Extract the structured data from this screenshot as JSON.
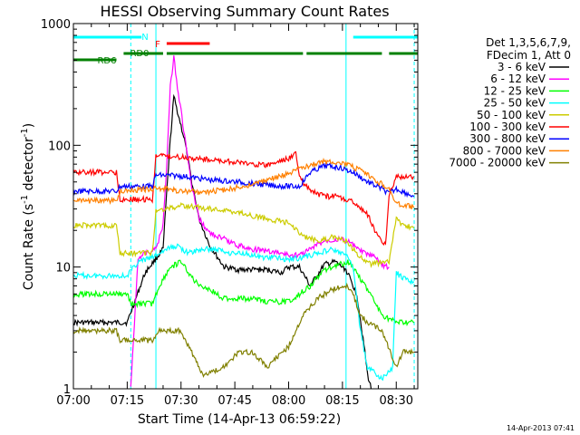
{
  "chart_data": {
    "type": "line",
    "title": "HESSI Observing Summary Count Rates",
    "xlabel": "Start Time (14-Apr-13 06:59:22)",
    "ylabel_parts": [
      "Count Rate (s",
      "-1",
      " detector",
      "-1",
      ")"
    ],
    "ylabel": "Count Rate (s-1 detector-1)",
    "xlim": [
      "07:00",
      "08:36"
    ],
    "ylim": [
      1,
      1000
    ],
    "yscale": "log",
    "x_ticks": [
      "07:00",
      "07:15",
      "07:30",
      "07:45",
      "08:00",
      "08:15",
      "08:30"
    ],
    "y_ticks": [
      "1",
      "10",
      "100",
      "1000"
    ],
    "legend_header": [
      "Det 1,3,5,6,7,9,",
      "FDecim 1, Att 0"
    ],
    "legend_position": "right",
    "footer_timestamp": "14-Apr-2013 07:41",
    "flags": [
      {
        "label": "N",
        "color": "#00ffff",
        "segments": [
          [
            "07:00",
            "07:19"
          ],
          [
            "08:18",
            "08:36"
          ]
        ]
      },
      {
        "label": "F",
        "color": "#ff0000",
        "segments": [
          [
            "07:26",
            "07:38"
          ]
        ]
      },
      {
        "label": "RD0",
        "color": "#008000",
        "segments": [
          [
            "07:14",
            "07:25"
          ],
          [
            "07:26",
            "08:04"
          ],
          [
            "08:05",
            "08:26"
          ],
          [
            "08:28",
            "08:36"
          ]
        ]
      },
      {
        "label": "RD6",
        "color": "#008000",
        "segments": [
          [
            "07:00",
            "07:12"
          ]
        ]
      }
    ],
    "vlines": [
      {
        "time": "07:16",
        "color": "#00ffff",
        "style": "dashed"
      },
      {
        "time": "07:23",
        "color": "#00ffff",
        "style": "solid"
      },
      {
        "time": "08:16",
        "color": "#00ffff",
        "style": "solid"
      },
      {
        "time": "08:35",
        "color": "#00ffff",
        "style": "dashed"
      }
    ],
    "series": [
      {
        "name": "3 - 6 keV",
        "color": "#000000",
        "points": [
          [
            "07:00",
            3.5
          ],
          [
            "07:15",
            3.5
          ],
          [
            "07:20",
            9
          ],
          [
            "07:25",
            14
          ],
          [
            "07:26",
            40
          ],
          [
            "07:27",
            110
          ],
          [
            "07:28",
            250
          ],
          [
            "07:29",
            190
          ],
          [
            "07:31",
            110
          ],
          [
            "07:33",
            50
          ],
          [
            "07:35",
            25
          ],
          [
            "07:38",
            15
          ],
          [
            "07:42",
            10
          ],
          [
            "07:46",
            9.5
          ],
          [
            "07:50",
            9.5
          ],
          [
            "07:54",
            9.5
          ],
          [
            "07:58",
            9
          ],
          [
            "08:00",
            10
          ],
          [
            "08:03",
            10
          ],
          [
            "08:06",
            7
          ],
          [
            "08:10",
            10.5
          ],
          [
            "08:13",
            11
          ],
          [
            "08:16",
            9.5
          ],
          [
            "08:19",
            6
          ],
          [
            "08:21",
            2.3
          ],
          [
            "08:22",
            1.3
          ],
          [
            "08:23",
            1
          ]
        ]
      },
      {
        "name": "6 - 12 keV",
        "color": "#ff00ff",
        "points": [
          [
            "07:16",
            1
          ],
          [
            "07:18",
            12
          ],
          [
            "07:20",
            13
          ],
          [
            "07:23",
            14
          ],
          [
            "07:25",
            22
          ],
          [
            "07:26",
            70
          ],
          [
            "07:27",
            300
          ],
          [
            "07:28",
            540
          ],
          [
            "07:29",
            300
          ],
          [
            "07:31",
            120
          ],
          [
            "07:33",
            45
          ],
          [
            "07:35",
            25
          ],
          [
            "07:38",
            19
          ],
          [
            "07:42",
            17
          ],
          [
            "07:46",
            15
          ],
          [
            "07:50",
            14
          ],
          [
            "07:54",
            13.5
          ],
          [
            "07:58",
            13
          ],
          [
            "08:00",
            12.5
          ],
          [
            "08:03",
            12.5
          ],
          [
            "08:06",
            14
          ],
          [
            "08:10",
            16.5
          ],
          [
            "08:14",
            17
          ],
          [
            "08:17",
            16
          ],
          [
            "08:20",
            13.5
          ],
          [
            "08:24",
            12
          ],
          [
            "08:26",
            10.5
          ],
          [
            "08:28",
            10
          ]
        ]
      },
      {
        "name": "12 - 25 keV",
        "color": "#00ff00",
        "points": [
          [
            "07:00",
            6
          ],
          [
            "07:15",
            6
          ],
          [
            "07:16",
            5
          ],
          [
            "07:22",
            5
          ],
          [
            "07:24",
            7
          ],
          [
            "07:27",
            10
          ],
          [
            "07:30",
            11
          ],
          [
            "07:34",
            7.5
          ],
          [
            "07:38",
            6.5
          ],
          [
            "07:42",
            5.5
          ],
          [
            "07:46",
            5.5
          ],
          [
            "07:50",
            5.5
          ],
          [
            "07:54",
            5.2
          ],
          [
            "07:58",
            5.2
          ],
          [
            "08:00",
            5.2
          ],
          [
            "08:03",
            6
          ],
          [
            "08:06",
            7
          ],
          [
            "08:10",
            9.5
          ],
          [
            "08:14",
            10.5
          ],
          [
            "08:17",
            11
          ],
          [
            "08:19",
            9
          ],
          [
            "08:22",
            6.5
          ],
          [
            "08:26",
            4
          ],
          [
            "08:30",
            3.5
          ],
          [
            "08:35",
            3.5
          ]
        ]
      },
      {
        "name": "25 - 50 keV",
        "color": "#00ffff",
        "points": [
          [
            "07:00",
            8.5
          ],
          [
            "07:15",
            8.5
          ],
          [
            "07:18",
            11
          ],
          [
            "07:22",
            12
          ],
          [
            "07:26",
            14
          ],
          [
            "07:29",
            15
          ],
          [
            "07:32",
            13
          ],
          [
            "07:36",
            14
          ],
          [
            "07:40",
            14
          ],
          [
            "07:44",
            13
          ],
          [
            "07:48",
            13
          ],
          [
            "07:52",
            12
          ],
          [
            "07:56",
            12
          ],
          [
            "08:00",
            11.5
          ],
          [
            "08:04",
            12
          ],
          [
            "08:08",
            13
          ],
          [
            "08:12",
            14
          ],
          [
            "08:16",
            12.5
          ],
          [
            "08:18",
            10
          ],
          [
            "08:20",
            3
          ],
          [
            "08:22",
            1.5
          ],
          [
            "08:26",
            1.2
          ],
          [
            "08:29",
            1.5
          ],
          [
            "08:30",
            9
          ],
          [
            "08:32",
            8
          ],
          [
            "08:35",
            7.5
          ]
        ]
      },
      {
        "name": "50 - 100 keV",
        "color": "#cccc00",
        "points": [
          [
            "07:00",
            22
          ],
          [
            "07:12",
            22
          ],
          [
            "07:13",
            13
          ],
          [
            "07:22",
            13
          ],
          [
            "07:23",
            29
          ],
          [
            "07:30",
            32
          ],
          [
            "07:38",
            30
          ],
          [
            "07:46",
            28
          ],
          [
            "07:54",
            25
          ],
          [
            "08:00",
            23
          ],
          [
            "08:04",
            18
          ],
          [
            "08:08",
            16.5
          ],
          [
            "08:12",
            17.5
          ],
          [
            "08:16",
            16.5
          ],
          [
            "08:20",
            12
          ],
          [
            "08:23",
            10.5
          ],
          [
            "08:26",
            11
          ],
          [
            "08:28",
            11
          ],
          [
            "08:30",
            25
          ],
          [
            "08:32",
            22
          ],
          [
            "08:35",
            21
          ]
        ]
      },
      {
        "name": "100 - 300 keV",
        "color": "#ff0000",
        "points": [
          [
            "07:00",
            60
          ],
          [
            "07:12",
            60
          ],
          [
            "07:13",
            36
          ],
          [
            "07:22",
            36
          ],
          [
            "07:23",
            82
          ],
          [
            "07:30",
            80
          ],
          [
            "07:38",
            76
          ],
          [
            "07:46",
            72
          ],
          [
            "07:54",
            68
          ],
          [
            "08:00",
            78
          ],
          [
            "08:02",
            86
          ],
          [
            "08:03",
            55
          ],
          [
            "08:06",
            42
          ],
          [
            "08:10",
            38
          ],
          [
            "08:14",
            38
          ],
          [
            "08:18",
            34
          ],
          [
            "08:22",
            27
          ],
          [
            "08:24",
            20
          ],
          [
            "08:26",
            16.5
          ],
          [
            "08:27",
            15
          ],
          [
            "08:28",
            40
          ],
          [
            "08:30",
            55
          ],
          [
            "08:35",
            55
          ]
        ]
      },
      {
        "name": "300 - 800 keV",
        "color": "#0000ff",
        "points": [
          [
            "07:00",
            42
          ],
          [
            "07:12",
            42
          ],
          [
            "07:13",
            46
          ],
          [
            "07:22",
            46
          ],
          [
            "07:23",
            57
          ],
          [
            "07:30",
            56
          ],
          [
            "07:38",
            52
          ],
          [
            "07:46",
            50
          ],
          [
            "07:54",
            47
          ],
          [
            "08:00",
            46
          ],
          [
            "08:03",
            46
          ],
          [
            "08:06",
            60
          ],
          [
            "08:10",
            68
          ],
          [
            "08:14",
            66
          ],
          [
            "08:18",
            60
          ],
          [
            "08:22",
            50
          ],
          [
            "08:26",
            44
          ],
          [
            "08:28",
            40
          ],
          [
            "08:30",
            44
          ],
          [
            "08:35",
            38
          ]
        ]
      },
      {
        "name": "800 - 7000 keV",
        "color": "#ff8000",
        "points": [
          [
            "07:00",
            35
          ],
          [
            "07:12",
            35
          ],
          [
            "07:13",
            42
          ],
          [
            "07:22",
            44
          ],
          [
            "07:26",
            44
          ],
          [
            "07:30",
            42
          ],
          [
            "07:36",
            41
          ],
          [
            "07:42",
            43
          ],
          [
            "07:48",
            46
          ],
          [
            "07:54",
            52
          ],
          [
            "08:00",
            58
          ],
          [
            "08:04",
            66
          ],
          [
            "08:08",
            72
          ],
          [
            "08:12",
            74
          ],
          [
            "08:16",
            70
          ],
          [
            "08:20",
            62
          ],
          [
            "08:24",
            52
          ],
          [
            "08:27",
            46
          ],
          [
            "08:28",
            44
          ],
          [
            "08:30",
            33
          ],
          [
            "08:35",
            31
          ]
        ]
      },
      {
        "name": "7000 - 20000 keV",
        "color": "#808000",
        "points": [
          [
            "07:00",
            3
          ],
          [
            "07:12",
            3
          ],
          [
            "07:13",
            2.5
          ],
          [
            "07:22",
            2.5
          ],
          [
            "07:24",
            3
          ],
          [
            "07:30",
            3
          ],
          [
            "07:36",
            1.3
          ],
          [
            "07:42",
            1.5
          ],
          [
            "07:46",
            2
          ],
          [
            "07:50",
            2
          ],
          [
            "07:54",
            1.5
          ],
          [
            "07:58",
            2
          ],
          [
            "08:00",
            2.2
          ],
          [
            "08:02",
            3
          ],
          [
            "08:04",
            4
          ],
          [
            "08:08",
            5.5
          ],
          [
            "08:12",
            6.5
          ],
          [
            "08:16",
            7
          ],
          [
            "08:18",
            6
          ],
          [
            "08:20",
            4
          ],
          [
            "08:22",
            3.5
          ],
          [
            "08:26",
            3
          ],
          [
            "08:30",
            1.5
          ],
          [
            "08:32",
            2
          ],
          [
            "08:35",
            2
          ]
        ]
      }
    ]
  }
}
